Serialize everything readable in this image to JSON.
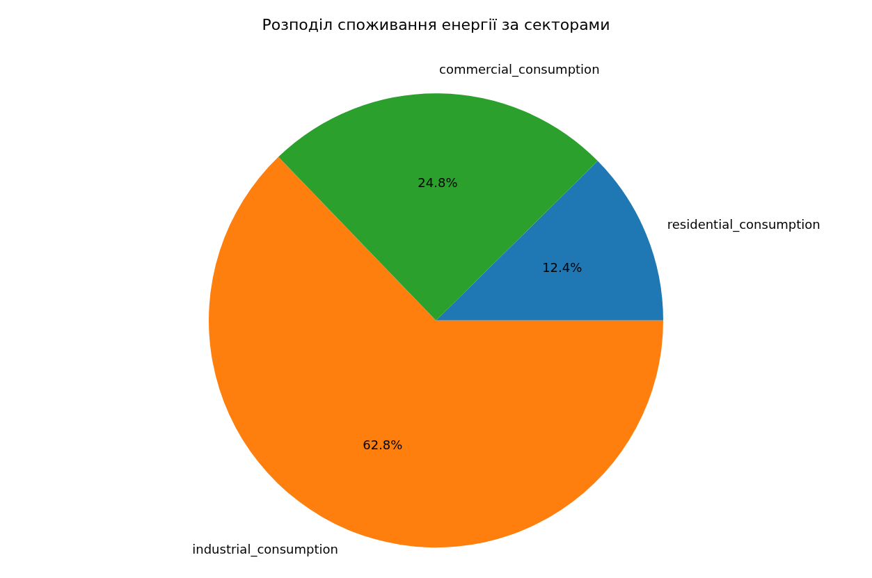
{
  "chart_data": {
    "type": "pie",
    "title": "Розподіл споживання енергії за секторами",
    "categories": [
      "residential_consumption",
      "industrial_consumption",
      "commercial_consumption"
    ],
    "values": [
      12.4,
      62.8,
      24.8
    ],
    "colors": [
      "#1f77b4",
      "#ff7f0e",
      "#2ca02c"
    ],
    "value_labels": [
      "12.4%",
      "62.8%",
      "24.8%"
    ]
  }
}
